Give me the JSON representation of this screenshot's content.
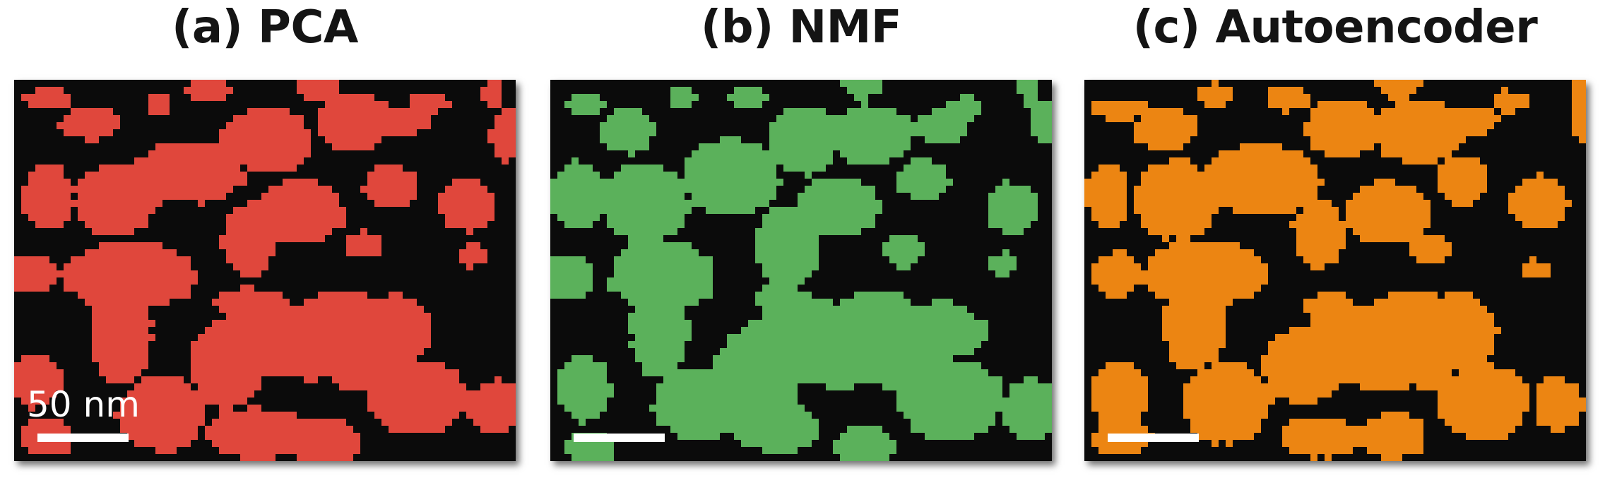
{
  "figure": {
    "scale_bar_label": "50 nm",
    "panels": [
      {
        "id": "a",
        "title": "(a) PCA",
        "color": "#e0473c",
        "seed": 11,
        "show_scale_label": true
      },
      {
        "id": "b",
        "title": "(b) NMF",
        "color": "#5bb15b",
        "seed": 37,
        "show_scale_label": false
      },
      {
        "id": "c",
        "title": "(c) Autoencoder",
        "color": "#ec8512",
        "seed": 73,
        "show_scale_label": false
      }
    ]
  }
}
